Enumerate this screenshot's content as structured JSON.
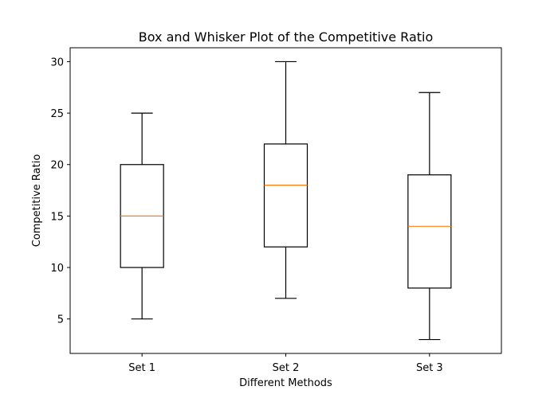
{
  "chart_data": {
    "type": "box",
    "title": "Box and Whisker Plot of the Competitive Ratio",
    "xlabel": "Different Methods",
    "ylabel": "Competitive Ratio",
    "ylim": [
      1.65,
      31.35
    ],
    "yticks": [
      5,
      10,
      15,
      20,
      25,
      30
    ],
    "categories": [
      "Set 1",
      "Set 2",
      "Set 3"
    ],
    "boxes": [
      {
        "category": "Set 1",
        "min": 5,
        "q1": 10,
        "median": 15,
        "q3": 20,
        "max": 25
      },
      {
        "category": "Set 2",
        "min": 7,
        "q1": 12,
        "median": 18,
        "q3": 22,
        "max": 30
      },
      {
        "category": "Set 3",
        "min": 3,
        "q1": 8,
        "median": 14,
        "q3": 19,
        "max": 27
      }
    ],
    "colors": {
      "box": "#000000",
      "median": "#ff7f0e"
    },
    "grid": false
  }
}
